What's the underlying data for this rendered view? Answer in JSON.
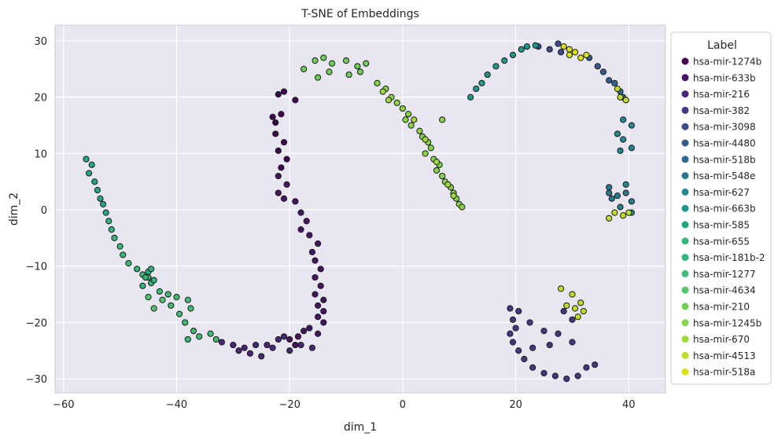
{
  "chart_data": {
    "type": "scatter",
    "title": "T-SNE of Embeddings",
    "xlabel": "dim_1",
    "ylabel": "dim_2",
    "xlim": [
      -61.5,
      46.5
    ],
    "ylim": [
      -32.5,
      32.8
    ],
    "xticks": [
      -60,
      -40,
      -20,
      0,
      20,
      40
    ],
    "yticks": [
      -30,
      -20,
      -10,
      0,
      10,
      20,
      30
    ],
    "grid": true,
    "legend": {
      "title": "Label",
      "placement": "right-outside"
    },
    "colors": {
      "background": "#e8e6f0",
      "grid": "#ffffff",
      "marker_edge": "#1a1a1a"
    },
    "series": [
      {
        "name": "hsa-mir-1274b",
        "color": "#440154",
        "points": [
          [
            -22,
            20.5
          ],
          [
            -19,
            19.5
          ],
          [
            -21,
            21
          ],
          [
            -23,
            16.5
          ],
          [
            -22.5,
            15.5
          ],
          [
            -21.5,
            17
          ],
          [
            -22.5,
            13.5
          ],
          [
            -21,
            12
          ],
          [
            -22,
            10.5
          ],
          [
            -20.5,
            9
          ],
          [
            -21.5,
            7.5
          ]
        ]
      },
      {
        "name": "hsa-mir-633b",
        "color": "#471365",
        "points": [
          [
            -22,
            6
          ],
          [
            -20.5,
            4.5
          ],
          [
            -22,
            3
          ],
          [
            -21,
            2
          ],
          [
            -19,
            1.5
          ],
          [
            -18,
            -0.5
          ],
          [
            -17,
            -2
          ],
          [
            -18,
            -3.5
          ],
          [
            -16.5,
            -4.5
          ],
          [
            -15,
            -6
          ],
          [
            -16,
            -7.5
          ],
          [
            -15.5,
            -9
          ],
          [
            -14.5,
            -10.5
          ],
          [
            -15.5,
            -12
          ],
          [
            -14.5,
            -13.5
          ],
          [
            -15.5,
            -15
          ],
          [
            -14,
            -16
          ],
          [
            -15,
            -17
          ],
          [
            -14,
            -18
          ],
          [
            -15,
            -19
          ],
          [
            -14,
            -20
          ],
          [
            -16.5,
            -21
          ],
          [
            -17.5,
            -21.5
          ],
          [
            -15,
            -22
          ],
          [
            -18.5,
            -22.5
          ],
          [
            -20,
            -23
          ],
          [
            -19,
            -24
          ]
        ]
      },
      {
        "name": "hsa-mir-216",
        "color": "#482576",
        "points": [
          [
            -32,
            -23.5
          ],
          [
            -30,
            -24
          ],
          [
            -28,
            -24.5
          ],
          [
            -26,
            -24
          ],
          [
            -27,
            -25.5
          ],
          [
            -24,
            -24
          ],
          [
            -22,
            -23
          ],
          [
            -23,
            -24.5
          ],
          [
            -21,
            -22.5
          ],
          [
            -20,
            -25
          ],
          [
            -18,
            -24
          ],
          [
            -16,
            -24.5
          ],
          [
            -25,
            -26
          ],
          [
            -29,
            -25
          ]
        ]
      },
      {
        "name": "hsa-mir-382",
        "color": "#453781",
        "points": [
          [
            19,
            -17.5
          ],
          [
            20.5,
            -18
          ],
          [
            19.5,
            -19.5
          ],
          [
            20,
            -21
          ],
          [
            19,
            -22
          ],
          [
            19.5,
            -23.5
          ],
          [
            20.5,
            -25
          ],
          [
            21.5,
            -26.5
          ],
          [
            23,
            -28
          ],
          [
            25,
            -29
          ],
          [
            27,
            -29.5
          ],
          [
            29,
            -30
          ],
          [
            31,
            -29.5
          ],
          [
            32.5,
            -28
          ],
          [
            34,
            -27.5
          ],
          [
            30,
            -23.5
          ],
          [
            27.5,
            -22
          ],
          [
            25,
            -21.5
          ],
          [
            22.5,
            -20
          ],
          [
            28.5,
            -18
          ],
          [
            30,
            -19.5
          ],
          [
            26,
            -24
          ],
          [
            23,
            -24.5
          ]
        ]
      },
      {
        "name": "hsa-mir-3098",
        "color": "#3e4989",
        "points": [
          [
            24,
            29
          ],
          [
            26,
            28.5
          ],
          [
            27.5,
            29.5
          ],
          [
            28,
            28
          ]
        ]
      },
      {
        "name": "hsa-mir-4480",
        "color": "#375a8c",
        "points": [
          [
            33,
            27
          ],
          [
            34.5,
            25.5
          ],
          [
            35.5,
            24.5
          ],
          [
            36.5,
            23
          ]
        ]
      },
      {
        "name": "hsa-mir-518b",
        "color": "#306a8e",
        "points": [
          [
            37.5,
            22.5
          ],
          [
            38.5,
            21
          ],
          [
            39,
            20
          ]
        ]
      },
      {
        "name": "hsa-mir-548e",
        "color": "#2a788e",
        "points": [
          [
            36.5,
            4
          ],
          [
            37,
            2
          ],
          [
            38,
            2.5
          ],
          [
            39.5,
            3
          ],
          [
            40.5,
            1.5
          ],
          [
            38.5,
            0.5
          ],
          [
            36.5,
            3
          ]
        ]
      },
      {
        "name": "hsa-mir-627",
        "color": "#23888e",
        "points": [
          [
            39,
            16
          ],
          [
            40.5,
            15
          ],
          [
            38,
            13.5
          ],
          [
            39,
            12.5
          ],
          [
            40.5,
            11
          ],
          [
            38.5,
            10.5
          ],
          [
            39.5,
            4.5
          ],
          [
            40.5,
            -0.5
          ]
        ]
      },
      {
        "name": "hsa-mir-663b",
        "color": "#1f988b",
        "points": [
          [
            12,
            20
          ],
          [
            13,
            21.5
          ],
          [
            14,
            22.5
          ],
          [
            15,
            24
          ],
          [
            16.5,
            25.5
          ],
          [
            18,
            26.5
          ],
          [
            19.5,
            27.5
          ],
          [
            21,
            28.5
          ],
          [
            22,
            29
          ],
          [
            23.5,
            29.2
          ]
        ]
      },
      {
        "name": "hsa-mir-585",
        "color": "#22a785",
        "points": [
          [
            -56,
            9
          ],
          [
            -55,
            8
          ],
          [
            -55.5,
            6.5
          ],
          [
            -54.5,
            5
          ],
          [
            -54,
            3.5
          ],
          [
            -53.5,
            2
          ],
          [
            -53,
            1
          ],
          [
            -52.5,
            -0.5
          ]
        ]
      },
      {
        "name": "hsa-mir-655",
        "color": "#35b779",
        "points": [
          [
            -52,
            -2
          ],
          [
            -51.5,
            -3.5
          ],
          [
            -51,
            -5
          ],
          [
            -50,
            -6.5
          ],
          [
            -49.5,
            -8
          ],
          [
            -48.5,
            -9.5
          ],
          [
            -47,
            -10.5
          ],
          [
            -46,
            -11.5
          ],
          [
            -45,
            -12
          ],
          [
            -44.5,
            -13
          ]
        ]
      },
      {
        "name": "hsa-mir-181b-2",
        "color": "#2fb47c",
        "points": [
          [
            -45,
            -11
          ],
          [
            -44,
            -12.5
          ],
          [
            -46,
            -13.5
          ],
          [
            -44.5,
            -10.5
          ],
          [
            -45.5,
            -12
          ]
        ]
      },
      {
        "name": "hsa-mir-1277",
        "color": "#40bd72",
        "points": [
          [
            -43,
            -14.5
          ],
          [
            -41.5,
            -15
          ],
          [
            -40,
            -15.5
          ],
          [
            -38,
            -16
          ],
          [
            -37.5,
            -17.5
          ],
          [
            -39.5,
            -18.5
          ],
          [
            -41,
            -17
          ],
          [
            -38.5,
            -20
          ],
          [
            -37,
            -21.5
          ],
          [
            -36,
            -22.5
          ],
          [
            -34,
            -22
          ],
          [
            -33,
            -23
          ],
          [
            -38,
            -23
          ]
        ]
      },
      {
        "name": "hsa-mir-4634",
        "color": "#52c569",
        "points": [
          [
            -44,
            -17.5
          ],
          [
            -42.5,
            -16
          ],
          [
            -45,
            -15.5
          ]
        ]
      },
      {
        "name": "hsa-mir-210",
        "color": "#6ece58",
        "points": [
          [
            -17.5,
            25
          ],
          [
            -15.5,
            26.5
          ],
          [
            -14,
            27
          ],
          [
            -12.5,
            26
          ],
          [
            -10,
            26.5
          ],
          [
            -8,
            25.5
          ],
          [
            -6.5,
            26
          ],
          [
            -7.5,
            24.5
          ],
          [
            -9.5,
            24
          ],
          [
            -13,
            24.5
          ],
          [
            -15,
            23.5
          ]
        ]
      },
      {
        "name": "hsa-mir-1245b",
        "color": "#86d549",
        "points": [
          [
            -4.5,
            22.5
          ],
          [
            -3,
            21.5
          ],
          [
            -2,
            20
          ],
          [
            -1,
            19
          ],
          [
            0,
            18
          ],
          [
            1,
            17
          ],
          [
            0.5,
            16
          ],
          [
            1.5,
            15
          ],
          [
            3,
            14
          ],
          [
            3.5,
            13
          ],
          [
            4.5,
            12
          ],
          [
            5,
            11
          ],
          [
            4,
            10
          ],
          [
            5.5,
            9
          ],
          [
            6.5,
            8
          ],
          [
            6,
            7
          ],
          [
            7,
            6
          ],
          [
            7.5,
            5
          ],
          [
            8.5,
            4
          ],
          [
            9,
            3
          ],
          [
            9.5,
            2
          ],
          [
            10,
            1
          ],
          [
            10.5,
            0.5
          ],
          [
            7,
            16
          ]
        ]
      },
      {
        "name": "hsa-mir-670",
        "color": "#a0da39",
        "points": [
          [
            -3.5,
            21
          ],
          [
            -2.5,
            19.5
          ],
          [
            2,
            16
          ],
          [
            4,
            12.5
          ],
          [
            6,
            8.5
          ],
          [
            8,
            4.5
          ],
          [
            9,
            2.5
          ]
        ]
      },
      {
        "name": "hsa-mir-4513",
        "color": "#bddf26",
        "points": [
          [
            37.5,
            -0.5
          ],
          [
            39,
            -1
          ],
          [
            40,
            -0.5
          ],
          [
            36.5,
            -1.5
          ],
          [
            38.5,
            20
          ],
          [
            39.5,
            19.5
          ],
          [
            38,
            21.5
          ],
          [
            28,
            -14
          ],
          [
            30,
            -15
          ],
          [
            31.5,
            -16.5
          ],
          [
            32,
            -18
          ],
          [
            29,
            -17
          ],
          [
            30.5,
            -17.5
          ],
          [
            31,
            -19
          ]
        ]
      },
      {
        "name": "hsa-mir-518a",
        "color": "#d8e219",
        "points": [
          [
            28.5,
            29
          ],
          [
            29.5,
            28.5
          ],
          [
            30.5,
            28
          ],
          [
            31.5,
            27
          ],
          [
            32.5,
            27.5
          ],
          [
            29.5,
            27.5
          ]
        ]
      }
    ]
  }
}
